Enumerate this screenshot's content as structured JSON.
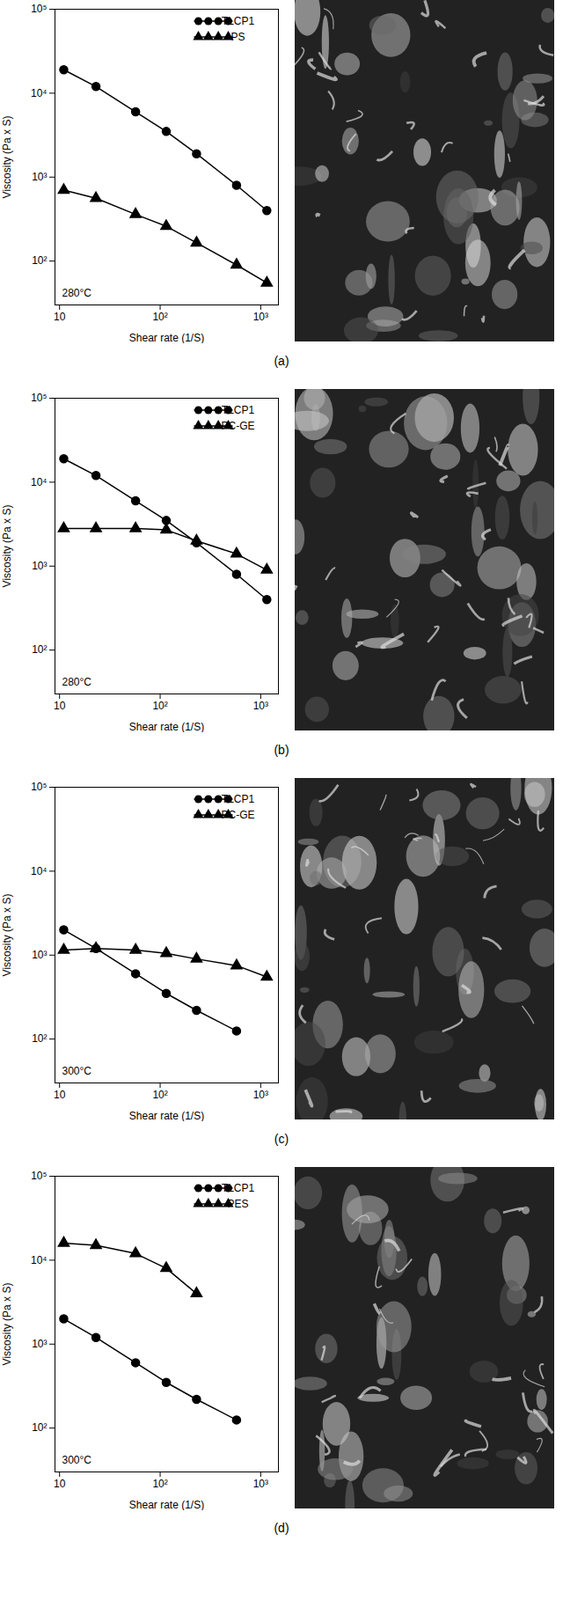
{
  "chart_data": [
    {
      "type": "line",
      "caption": "(a)",
      "annotation": "280°C",
      "x_label": "Shear rate (1/S)",
      "y_label": "Viscosity (Pa x S)",
      "log": true,
      "grid": false,
      "legend": "top-right",
      "xlim": [
        9,
        1500
      ],
      "ylim": [
        30,
        100000
      ],
      "xticks": [
        10,
        {
          "value": 100,
          "label": "10²"
        },
        {
          "value": 1000,
          "label": "10³"
        }
      ],
      "yticks": [
        {
          "value": 100,
          "label": "10²"
        },
        {
          "value": 1000,
          "label": "10³"
        },
        {
          "value": 10000,
          "label": "10⁴"
        },
        {
          "value": 100000,
          "label": "10⁵"
        }
      ],
      "series": [
        {
          "name": "TLCP1",
          "color": "#000000",
          "marker": "circle",
          "x": [
            11,
            23,
            57,
            115,
            230,
            575,
            1150
          ],
          "values": [
            19000,
            12000,
            6000,
            3500,
            1900,
            800,
            400
          ]
        },
        {
          "name": "PS",
          "color": "#000000",
          "marker": "triangle",
          "x": [
            11,
            23,
            57,
            115,
            230,
            575,
            1150
          ],
          "values": [
            700,
            560,
            360,
            260,
            165,
            90,
            55
          ]
        }
      ]
    },
    {
      "type": "line",
      "caption": "(b)",
      "annotation": "280°C",
      "x_label": "Shear rate (1/S)",
      "y_label": "Viscosity (Pa x S)",
      "log": true,
      "grid": false,
      "legend": "top-right",
      "xlim": [
        9,
        1500
      ],
      "ylim": [
        30,
        100000
      ],
      "xticks": [
        10,
        {
          "value": 100,
          "label": "10²"
        },
        {
          "value": 1000,
          "label": "10³"
        }
      ],
      "yticks": [
        {
          "value": 100,
          "label": "10²"
        },
        {
          "value": 1000,
          "label": "10³"
        },
        {
          "value": 10000,
          "label": "10⁴"
        },
        {
          "value": 100000,
          "label": "10⁵"
        }
      ],
      "series": [
        {
          "name": "TLCP1",
          "color": "#000000",
          "marker": "circle",
          "x": [
            11,
            23,
            57,
            115,
            230,
            575,
            1150
          ],
          "values": [
            19000,
            12000,
            6000,
            3500,
            1900,
            800,
            400
          ]
        },
        {
          "name": "PC-GE",
          "color": "#000000",
          "marker": "triangle",
          "x": [
            11,
            23,
            57,
            115,
            230,
            575,
            1150
          ],
          "values": [
            2800,
            2800,
            2800,
            2700,
            2000,
            1400,
            900
          ]
        }
      ]
    },
    {
      "type": "line",
      "caption": "(c)",
      "annotation": "300°C",
      "x_label": "Shear rate (1/S)",
      "y_label": "Viscosity (Pa x S)",
      "log": true,
      "grid": false,
      "legend": "top-right",
      "xlim": [
        9,
        1500
      ],
      "ylim": [
        30,
        100000
      ],
      "xticks": [
        10,
        {
          "value": 100,
          "label": "10²"
        },
        {
          "value": 1000,
          "label": "10³"
        }
      ],
      "yticks": [
        {
          "value": 100,
          "label": "10²"
        },
        {
          "value": 1000,
          "label": "10³"
        },
        {
          "value": 10000,
          "label": "10⁴"
        },
        {
          "value": 100000,
          "label": "10⁵"
        }
      ],
      "series": [
        {
          "name": "TLCP1",
          "color": "#000000",
          "marker": "circle",
          "x": [
            11,
            23,
            57,
            115,
            230,
            575
          ],
          "values": [
            2000,
            1200,
            600,
            350,
            220,
            125
          ]
        },
        {
          "name": "PC-GE",
          "color": "#000000",
          "marker": "triangle",
          "x": [
            11,
            23,
            57,
            115,
            230,
            575,
            1150
          ],
          "values": [
            1150,
            1200,
            1150,
            1050,
            900,
            750,
            550
          ]
        }
      ]
    },
    {
      "type": "line",
      "caption": "(d)",
      "annotation": "300°C",
      "x_label": "Shear rate (1/S)",
      "y_label": "Viscosity (Pa x S)",
      "log": true,
      "grid": false,
      "legend": "top-right",
      "xlim": [
        9,
        1500
      ],
      "ylim": [
        30,
        100000
      ],
      "xticks": [
        10,
        {
          "value": 100,
          "label": "10²"
        },
        {
          "value": 1000,
          "label": "10³"
        }
      ],
      "yticks": [
        {
          "value": 100,
          "label": "10²"
        },
        {
          "value": 1000,
          "label": "10³"
        },
        {
          "value": 10000,
          "label": "10⁴"
        },
        {
          "value": 100000,
          "label": "10⁵"
        }
      ],
      "series": [
        {
          "name": "TLCP1",
          "color": "#000000",
          "marker": "circle",
          "x": [
            11,
            23,
            57,
            115,
            230,
            575
          ],
          "values": [
            2000,
            1200,
            600,
            350,
            220,
            125
          ]
        },
        {
          "name": "PES",
          "color": "#000000",
          "marker": "triangle",
          "x": [
            11,
            23,
            57,
            115,
            230
          ],
          "values": [
            16000,
            15000,
            12000,
            8000,
            4000
          ]
        }
      ]
    }
  ]
}
